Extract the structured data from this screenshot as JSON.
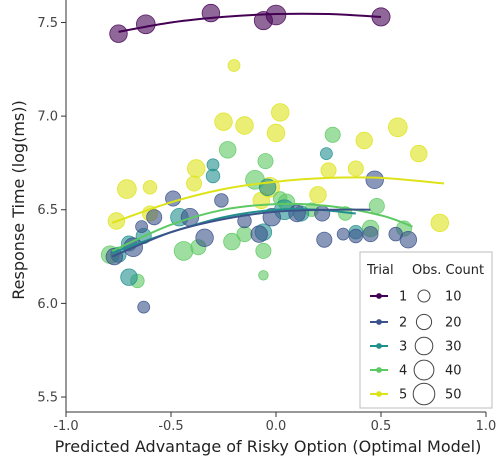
{
  "chart_data": {
    "type": "scatter",
    "title": "",
    "xlabel": "Predicted Advantage of Risky Option (Optimal Model)",
    "ylabel": "Response Time (log(ms))",
    "xlim": [
      -1.0,
      1.0
    ],
    "ylim": [
      5.42,
      7.62
    ],
    "x_ticks": [
      -1.0,
      -0.5,
      0.0,
      0.5,
      1.0
    ],
    "x_tick_labels": [
      "-1.0",
      "-0.5",
      "0.0",
      "0.5",
      "1.0"
    ],
    "y_ticks": [
      5.5,
      6.0,
      6.5,
      7.0,
      7.5
    ],
    "y_tick_labels": [
      "5.5",
      "6.0",
      "6.5",
      "7.0",
      "7.5"
    ],
    "grid": false,
    "legend": {
      "placement": "bottom-right",
      "trial_title": "Trial",
      "size_title": "Obs. Count",
      "trial_labels": [
        "1",
        "2",
        "3",
        "4",
        "5"
      ],
      "size_labels": [
        "10",
        "20",
        "30",
        "40",
        "50"
      ],
      "size_values": [
        10,
        20,
        30,
        40,
        50
      ]
    },
    "colors": [
      "#440154",
      "#3b528b",
      "#21908d",
      "#5dc963",
      "#dde318"
    ],
    "series": [
      {
        "name": "1",
        "color": "#440154",
        "curve": {
          "x": [
            -0.75,
            -0.5,
            -0.25,
            0.0,
            0.25,
            0.5
          ],
          "y": [
            7.45,
            7.5,
            7.53,
            7.545,
            7.545,
            7.53
          ]
        },
        "points": [
          {
            "x": -0.75,
            "y": 7.44,
            "count": 30
          },
          {
            "x": -0.62,
            "y": 7.49,
            "count": 35
          },
          {
            "x": -0.31,
            "y": 7.55,
            "count": 30
          },
          {
            "x": -0.06,
            "y": 7.51,
            "count": 32
          },
          {
            "x": 0.0,
            "y": 7.54,
            "count": 40
          },
          {
            "x": 0.5,
            "y": 7.53,
            "count": 32
          }
        ]
      },
      {
        "name": "2",
        "color": "#3b528b",
        "curve": {
          "x": [
            -0.78,
            -0.5,
            -0.25,
            0.0,
            0.25,
            0.45
          ],
          "y": [
            6.25,
            6.38,
            6.45,
            6.49,
            6.5,
            6.5
          ]
        },
        "points": [
          {
            "x": -0.77,
            "y": 6.25,
            "count": 25
          },
          {
            "x": -0.68,
            "y": 6.3,
            "count": 35
          },
          {
            "x": -0.64,
            "y": 6.41,
            "count": 10
          },
          {
            "x": -0.63,
            "y": 5.98,
            "count": 10
          },
          {
            "x": -0.58,
            "y": 6.46,
            "count": 20
          },
          {
            "x": -0.49,
            "y": 6.56,
            "count": 20
          },
          {
            "x": -0.41,
            "y": 6.46,
            "count": 30
          },
          {
            "x": -0.34,
            "y": 6.35,
            "count": 30
          },
          {
            "x": -0.26,
            "y": 6.55,
            "count": 15
          },
          {
            "x": -0.15,
            "y": 6.44,
            "count": 15
          },
          {
            "x": -0.08,
            "y": 6.37,
            "count": 25
          },
          {
            "x": -0.02,
            "y": 6.46,
            "count": 30
          },
          {
            "x": 0.1,
            "y": 6.48,
            "count": 25
          },
          {
            "x": 0.22,
            "y": 6.48,
            "count": 20
          },
          {
            "x": 0.23,
            "y": 6.34,
            "count": 20
          },
          {
            "x": 0.32,
            "y": 6.37,
            "count": 10
          },
          {
            "x": 0.38,
            "y": 6.36,
            "count": 15
          },
          {
            "x": 0.45,
            "y": 6.37,
            "count": 20
          },
          {
            "x": 0.57,
            "y": 6.37,
            "count": 15
          },
          {
            "x": 0.63,
            "y": 6.34,
            "count": 25
          },
          {
            "x": 0.47,
            "y": 6.66,
            "count": 30
          }
        ]
      },
      {
        "name": "3",
        "color": "#21908d",
        "curve": {
          "x": [
            -0.78,
            -0.5,
            -0.25,
            0.0,
            0.2,
            0.38
          ],
          "y": [
            6.27,
            6.38,
            6.46,
            6.5,
            6.5,
            6.48
          ]
        },
        "points": [
          {
            "x": -0.75,
            "y": 6.26,
            "count": 20
          },
          {
            "x": -0.7,
            "y": 6.32,
            "count": 20
          },
          {
            "x": -0.7,
            "y": 6.14,
            "count": 25
          },
          {
            "x": -0.63,
            "y": 6.36,
            "count": 20
          },
          {
            "x": -0.46,
            "y": 6.46,
            "count": 30
          },
          {
            "x": -0.3,
            "y": 6.68,
            "count": 15
          },
          {
            "x": -0.06,
            "y": 6.38,
            "count": 25
          },
          {
            "x": -0.04,
            "y": 6.62,
            "count": 25
          },
          {
            "x": 0.04,
            "y": 6.5,
            "count": 40
          },
          {
            "x": 0.12,
            "y": 6.48,
            "count": 20
          },
          {
            "x": 0.24,
            "y": 6.8,
            "count": 10
          },
          {
            "x": 0.38,
            "y": 6.38,
            "count": 15
          },
          {
            "x": -0.3,
            "y": 6.74,
            "count": 10
          }
        ]
      },
      {
        "name": "4",
        "color": "#5dc963",
        "curve": {
          "x": [
            -0.78,
            -0.5,
            -0.25,
            0.0,
            0.25,
            0.5,
            0.65
          ],
          "y": [
            6.28,
            6.42,
            6.5,
            6.53,
            6.52,
            6.47,
            6.41
          ]
        },
        "points": [
          {
            "x": -0.79,
            "y": 6.26,
            "count": 30
          },
          {
            "x": -0.66,
            "y": 6.12,
            "count": 15
          },
          {
            "x": -0.44,
            "y": 6.28,
            "count": 35
          },
          {
            "x": -0.37,
            "y": 6.3,
            "count": 20
          },
          {
            "x": -0.23,
            "y": 6.82,
            "count": 25
          },
          {
            "x": -0.21,
            "y": 6.33,
            "count": 25
          },
          {
            "x": -0.15,
            "y": 6.37,
            "count": 20
          },
          {
            "x": -0.1,
            "y": 6.66,
            "count": 35
          },
          {
            "x": -0.06,
            "y": 6.15,
            "count": 5
          },
          {
            "x": -0.05,
            "y": 6.76,
            "count": 20
          },
          {
            "x": 0.02,
            "y": 6.56,
            "count": 15
          },
          {
            "x": 0.05,
            "y": 6.54,
            "count": 25
          },
          {
            "x": 0.17,
            "y": 6.5,
            "count": 15
          },
          {
            "x": 0.27,
            "y": 6.9,
            "count": 20
          },
          {
            "x": 0.33,
            "y": 6.48,
            "count": 15
          },
          {
            "x": 0.45,
            "y": 6.4,
            "count": 25
          },
          {
            "x": 0.48,
            "y": 6.52,
            "count": 20
          },
          {
            "x": 0.61,
            "y": 6.4,
            "count": 20
          },
          {
            "x": -0.06,
            "y": 6.28,
            "count": 20
          }
        ]
      },
      {
        "name": "5",
        "color": "#dde318",
        "curve": {
          "x": [
            -0.78,
            -0.5,
            -0.25,
            0.0,
            0.25,
            0.5,
            0.8
          ],
          "y": [
            6.43,
            6.54,
            6.61,
            6.65,
            6.67,
            6.67,
            6.64
          ]
        },
        "points": [
          {
            "x": -0.76,
            "y": 6.44,
            "count": 25
          },
          {
            "x": -0.71,
            "y": 6.61,
            "count": 35
          },
          {
            "x": -0.6,
            "y": 6.48,
            "count": 20
          },
          {
            "x": -0.6,
            "y": 6.62,
            "count": 15
          },
          {
            "x": -0.39,
            "y": 6.64,
            "count": 20
          },
          {
            "x": -0.38,
            "y": 6.72,
            "count": 30
          },
          {
            "x": -0.25,
            "y": 6.97,
            "count": 30
          },
          {
            "x": -0.2,
            "y": 7.27,
            "count": 10
          },
          {
            "x": -0.15,
            "y": 6.95,
            "count": 30
          },
          {
            "x": -0.07,
            "y": 6.55,
            "count": 25
          },
          {
            "x": -0.03,
            "y": 6.62,
            "count": 40
          },
          {
            "x": 0.0,
            "y": 6.91,
            "count": 30
          },
          {
            "x": 0.02,
            "y": 7.02,
            "count": 30
          },
          {
            "x": 0.2,
            "y": 6.58,
            "count": 25
          },
          {
            "x": 0.25,
            "y": 6.71,
            "count": 20
          },
          {
            "x": 0.38,
            "y": 6.72,
            "count": 20
          },
          {
            "x": 0.42,
            "y": 6.87,
            "count": 25
          },
          {
            "x": 0.58,
            "y": 6.94,
            "count": 35
          },
          {
            "x": 0.68,
            "y": 6.8,
            "count": 25
          },
          {
            "x": 0.78,
            "y": 6.43,
            "count": 30
          }
        ]
      }
    ]
  }
}
